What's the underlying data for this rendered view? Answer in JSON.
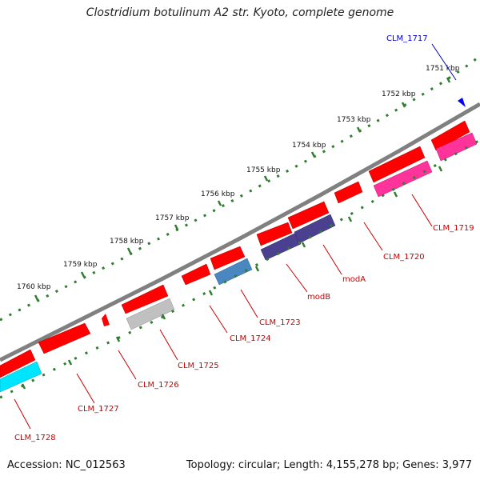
{
  "title": "Clostridium botulinum A2 str. Kyoto, complete genome",
  "footer": {
    "accession": "Accession: NC_012563",
    "summary": "Topology: circular; Length: 4,155,278 bp; Genes: 3,977"
  },
  "colors": {
    "backbone": "#808080",
    "tick": "#2f7d2f",
    "red_gene": "#ff0000",
    "pink_gene": "#ff3399",
    "navy_gene": "#4b3f8f",
    "steel_gene": "#4a86c0",
    "gray_gene": "#c0c0c0",
    "cyan_gene": "#00e5ff",
    "blue_feature": "#0000ff",
    "label_red": "#cc0000",
    "label_blue": "#0000cc"
  },
  "kbp_labels": [
    "1751 kbp",
    "1752 kbp",
    "1753 kbp",
    "1754 kbp",
    "1755 kbp",
    "1756 kbp",
    "1757 kbp",
    "1758 kbp",
    "1759 kbp",
    "1760 kbp"
  ],
  "gene_labels": {
    "clm_1717": "CLM_1717",
    "clm_1719": "CLM_1719",
    "clm_1720": "CLM_1720",
    "moda": "modA",
    "modb": "modB",
    "clm_1723": "CLM_1723",
    "clm_1724": "CLM_1724",
    "clm_1725": "CLM_1725",
    "clm_1726": "CLM_1726",
    "clm_1727": "CLM_1727",
    "clm_1728": "CLM_1728"
  }
}
